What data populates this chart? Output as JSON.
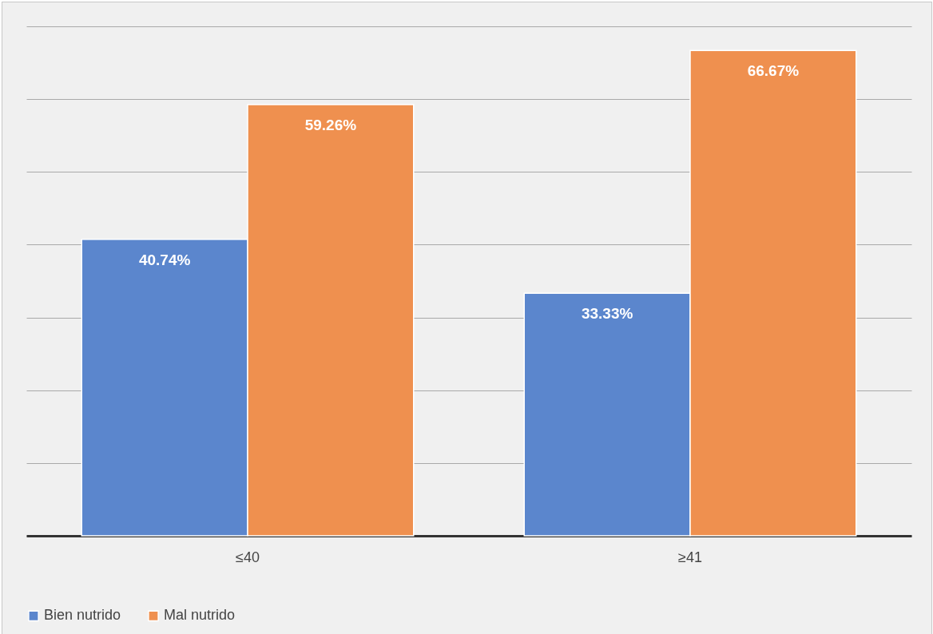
{
  "chart_data": {
    "type": "bar",
    "categories": [
      "≤40",
      "≥41"
    ],
    "series": [
      {
        "name": "Bien nutrido",
        "color": "#5b86cd",
        "values": [
          40.74,
          33.33
        ],
        "value_labels": [
          "40.74%",
          "33.33%"
        ]
      },
      {
        "name": "Mal nutrido",
        "color": "#ef904f",
        "values": [
          59.26,
          66.67
        ],
        "value_labels": [
          "59.26%",
          "66.67%"
        ]
      }
    ],
    "ylim": [
      0,
      70
    ],
    "yticks": [
      {
        "value": 0,
        "label": null
      },
      {
        "value": 10,
        "label": null
      },
      {
        "value": 20,
        "label": null
      },
      {
        "value": 30,
        "label": null
      },
      {
        "value": 40,
        "label": null
      },
      {
        "value": 50,
        "label": null
      },
      {
        "value": 60,
        "label": null
      },
      {
        "value": 70,
        "label": null
      }
    ],
    "grid": "y",
    "legend": "bottom",
    "tick_labels": "x"
  }
}
